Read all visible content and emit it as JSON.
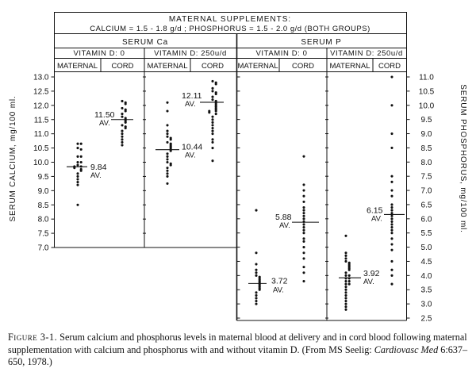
{
  "chart_data": {
    "type": "scatter",
    "header": {
      "title_line1": "MATERNAL SUPPLEMENTS:",
      "title_line2": "CALCIUM = 1.5 - 1.8 g/d ; PHOSPHORUS = 1.5 - 2.0 g/d (BOTH GROUPS)"
    },
    "groups": [
      "SERUM Ca",
      "SERUM P"
    ],
    "vitamin_labels": [
      "VITAMIN D: 0",
      "VITAMIN D: 250u/d",
      "VITAMIN D: 0",
      "VITAMIN D: 250u/d"
    ],
    "column_labels": [
      "MATERNAL",
      "CORD",
      "MATERNAL",
      "CORD",
      "MATERNAL",
      "CORD",
      "MATERNAL",
      "CORD"
    ],
    "left_axis": {
      "label": "SERUM CALCIUM, mg/100 ml.",
      "ylim": [
        7.0,
        13.0
      ],
      "ticks": [
        "13.0",
        "12.5",
        "12.0",
        "11.5",
        "11.0",
        "10.5",
        "10.0",
        "9.5",
        "9.0",
        "8.5",
        "8.0",
        "7.5",
        "7.0"
      ]
    },
    "right_axis": {
      "label": "SERUM PHOSPHORUS, mg/100 ml.",
      "ylim": [
        2.5,
        11.0
      ],
      "ticks": [
        "11.0",
        "10.5",
        "10.0",
        "9.5",
        "9.0",
        "8.5",
        "8.0",
        "7.5",
        "7.0",
        "6.5",
        "6.0",
        "5.5",
        "5.0",
        "4.5",
        "4.0",
        "3.5",
        "3.0",
        "2.5"
      ]
    },
    "series": [
      {
        "group": "SERUM Ca",
        "vitamin_d": "0",
        "sample": "MATERNAL",
        "mean": 9.84,
        "mean_label": "9.84",
        "av_label": "AV.",
        "values": [
          10.65,
          10.65,
          10.5,
          10.45,
          10.2,
          10.2,
          10.0,
          10.0,
          9.9,
          9.85,
          9.85,
          9.8,
          9.75,
          9.7,
          9.6,
          9.5,
          9.4,
          9.3,
          9.2,
          8.5
        ]
      },
      {
        "group": "SERUM Ca",
        "vitamin_d": "0",
        "sample": "CORD",
        "mean": 11.5,
        "mean_label": "11.50",
        "av_label": "AV.",
        "values": [
          12.15,
          12.1,
          12.05,
          11.9,
          11.85,
          11.8,
          11.7,
          11.6,
          11.55,
          11.5,
          11.45,
          11.4,
          11.3,
          11.25,
          11.2,
          11.1,
          11.0,
          10.9,
          10.8,
          10.7,
          10.6
        ]
      },
      {
        "group": "SERUM Ca",
        "vitamin_d": "250u/d",
        "sample": "MATERNAL",
        "mean": 10.44,
        "mean_label": "10.44",
        "av_label": "AV.",
        "values": [
          12.1,
          11.8,
          11.3,
          11.1,
          11.0,
          10.9,
          10.85,
          10.8,
          10.7,
          10.65,
          10.6,
          10.55,
          10.5,
          10.45,
          10.4,
          10.3,
          10.2,
          10.1,
          10.0,
          9.95,
          9.9,
          9.8,
          9.7,
          9.6,
          9.5,
          9.25
        ]
      },
      {
        "group": "SERUM Ca",
        "vitamin_d": "250u/d",
        "sample": "CORD",
        "mean": 12.11,
        "mean_label": "12.11",
        "av_label": "AV.",
        "values": [
          12.85,
          12.8,
          12.75,
          12.6,
          12.5,
          12.45,
          12.4,
          12.3,
          12.2,
          12.15,
          12.1,
          12.05,
          12.0,
          11.95,
          11.9,
          11.85,
          11.8,
          11.8,
          11.75,
          11.7,
          11.6,
          11.5,
          11.4,
          11.3,
          11.2,
          11.1,
          11.0,
          10.8,
          10.7,
          10.5,
          10.05
        ]
      },
      {
        "group": "SERUM P",
        "vitamin_d": "0",
        "sample": "MATERNAL",
        "mean": 3.72,
        "mean_label": "3.72",
        "av_label": "AV.",
        "values": [
          6.3,
          4.8,
          4.4,
          4.2,
          4.1,
          4.0,
          3.95,
          3.9,
          3.85,
          3.8,
          3.75,
          3.7,
          3.65,
          3.6,
          3.55,
          3.5,
          3.4,
          3.3,
          3.2,
          3.1,
          3.0
        ]
      },
      {
        "group": "SERUM P",
        "vitamin_d": "0",
        "sample": "CORD",
        "mean": 5.88,
        "mean_label": "5.88",
        "av_label": "AV.",
        "values": [
          8.2,
          7.2,
          7.0,
          6.8,
          6.6,
          6.4,
          6.3,
          6.2,
          6.1,
          6.0,
          5.9,
          5.8,
          5.7,
          5.6,
          5.5,
          5.3,
          5.2,
          5.0,
          4.8,
          4.6,
          4.3,
          4.1,
          3.8
        ]
      },
      {
        "group": "SERUM P",
        "vitamin_d": "250u/d",
        "sample": "MATERNAL",
        "mean": 3.92,
        "mean_label": "3.92",
        "av_label": "AV.",
        "values": [
          5.4,
          4.8,
          4.7,
          4.6,
          4.5,
          4.45,
          4.4,
          4.35,
          4.3,
          4.25,
          4.2,
          4.1,
          4.0,
          4.0,
          3.9,
          3.9,
          3.8,
          3.8,
          3.7,
          3.7,
          3.6,
          3.5,
          3.4,
          3.3,
          3.2,
          3.1,
          3.0,
          2.9,
          2.8
        ]
      },
      {
        "group": "SERUM P",
        "vitamin_d": "250u/d",
        "sample": "CORD",
        "mean": 6.15,
        "mean_label": "6.15",
        "av_label": "AV.",
        "values": [
          11.0,
          10.0,
          9.0,
          8.5,
          7.5,
          7.3,
          7.0,
          6.8,
          6.5,
          6.4,
          6.3,
          6.2,
          6.1,
          6.0,
          5.9,
          5.8,
          5.7,
          5.6,
          5.5,
          5.3,
          5.1,
          4.9,
          4.5,
          4.2,
          4.0,
          3.7
        ]
      }
    ]
  },
  "caption": {
    "figure_label": "Figure 3-1.",
    "text_before_journal": "Serum calcium and phosphorus levels in maternal blood at delivery and in cord blood following maternal supplementation with calcium and phosphorus with and without vitamin D. (From MS Seelig:",
    "journal": "Cardiovasc Med",
    "text_after_journal": "6:637–650, 1978.)"
  }
}
